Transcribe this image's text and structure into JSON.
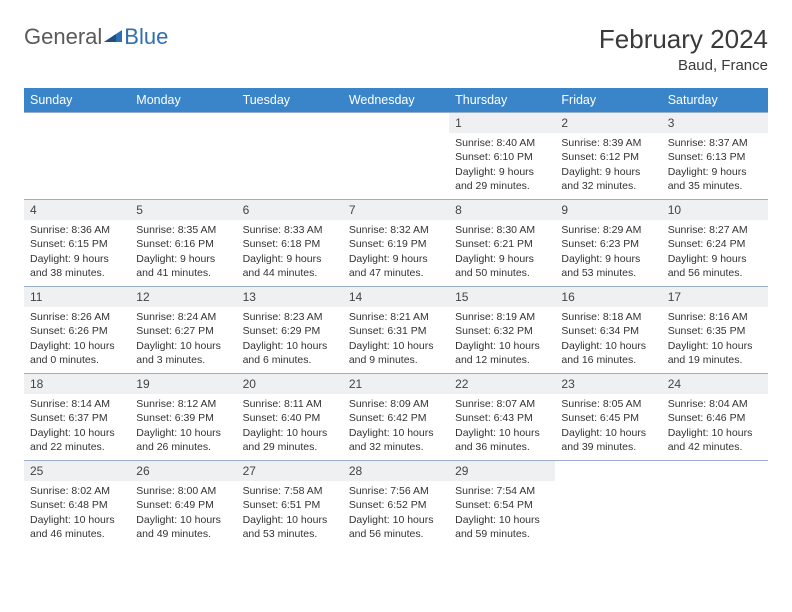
{
  "logo": {
    "word1": "General",
    "word2": "Blue"
  },
  "title": "February 2024",
  "location": "Baud, France",
  "colors": {
    "header_bg": "#3a85c9",
    "header_text": "#ffffff",
    "border": "#9aaecb",
    "daynum_bg": "#eef0f2",
    "logo_gray": "#5a5a5a",
    "logo_blue": "#2f6fb0"
  },
  "dayNames": [
    "Sunday",
    "Monday",
    "Tuesday",
    "Wednesday",
    "Thursday",
    "Friday",
    "Saturday"
  ],
  "weeks": [
    [
      {
        "n": "",
        "sr": "",
        "ss": "",
        "dl": ""
      },
      {
        "n": "",
        "sr": "",
        "ss": "",
        "dl": ""
      },
      {
        "n": "",
        "sr": "",
        "ss": "",
        "dl": ""
      },
      {
        "n": "",
        "sr": "",
        "ss": "",
        "dl": ""
      },
      {
        "n": "1",
        "sr": "Sunrise: 8:40 AM",
        "ss": "Sunset: 6:10 PM",
        "dl": "Daylight: 9 hours and 29 minutes."
      },
      {
        "n": "2",
        "sr": "Sunrise: 8:39 AM",
        "ss": "Sunset: 6:12 PM",
        "dl": "Daylight: 9 hours and 32 minutes."
      },
      {
        "n": "3",
        "sr": "Sunrise: 8:37 AM",
        "ss": "Sunset: 6:13 PM",
        "dl": "Daylight: 9 hours and 35 minutes."
      }
    ],
    [
      {
        "n": "4",
        "sr": "Sunrise: 8:36 AM",
        "ss": "Sunset: 6:15 PM",
        "dl": "Daylight: 9 hours and 38 minutes."
      },
      {
        "n": "5",
        "sr": "Sunrise: 8:35 AM",
        "ss": "Sunset: 6:16 PM",
        "dl": "Daylight: 9 hours and 41 minutes."
      },
      {
        "n": "6",
        "sr": "Sunrise: 8:33 AM",
        "ss": "Sunset: 6:18 PM",
        "dl": "Daylight: 9 hours and 44 minutes."
      },
      {
        "n": "7",
        "sr": "Sunrise: 8:32 AM",
        "ss": "Sunset: 6:19 PM",
        "dl": "Daylight: 9 hours and 47 minutes."
      },
      {
        "n": "8",
        "sr": "Sunrise: 8:30 AM",
        "ss": "Sunset: 6:21 PM",
        "dl": "Daylight: 9 hours and 50 minutes."
      },
      {
        "n": "9",
        "sr": "Sunrise: 8:29 AM",
        "ss": "Sunset: 6:23 PM",
        "dl": "Daylight: 9 hours and 53 minutes."
      },
      {
        "n": "10",
        "sr": "Sunrise: 8:27 AM",
        "ss": "Sunset: 6:24 PM",
        "dl": "Daylight: 9 hours and 56 minutes."
      }
    ],
    [
      {
        "n": "11",
        "sr": "Sunrise: 8:26 AM",
        "ss": "Sunset: 6:26 PM",
        "dl": "Daylight: 10 hours and 0 minutes."
      },
      {
        "n": "12",
        "sr": "Sunrise: 8:24 AM",
        "ss": "Sunset: 6:27 PM",
        "dl": "Daylight: 10 hours and 3 minutes."
      },
      {
        "n": "13",
        "sr": "Sunrise: 8:23 AM",
        "ss": "Sunset: 6:29 PM",
        "dl": "Daylight: 10 hours and 6 minutes."
      },
      {
        "n": "14",
        "sr": "Sunrise: 8:21 AM",
        "ss": "Sunset: 6:31 PM",
        "dl": "Daylight: 10 hours and 9 minutes."
      },
      {
        "n": "15",
        "sr": "Sunrise: 8:19 AM",
        "ss": "Sunset: 6:32 PM",
        "dl": "Daylight: 10 hours and 12 minutes."
      },
      {
        "n": "16",
        "sr": "Sunrise: 8:18 AM",
        "ss": "Sunset: 6:34 PM",
        "dl": "Daylight: 10 hours and 16 minutes."
      },
      {
        "n": "17",
        "sr": "Sunrise: 8:16 AM",
        "ss": "Sunset: 6:35 PM",
        "dl": "Daylight: 10 hours and 19 minutes."
      }
    ],
    [
      {
        "n": "18",
        "sr": "Sunrise: 8:14 AM",
        "ss": "Sunset: 6:37 PM",
        "dl": "Daylight: 10 hours and 22 minutes."
      },
      {
        "n": "19",
        "sr": "Sunrise: 8:12 AM",
        "ss": "Sunset: 6:39 PM",
        "dl": "Daylight: 10 hours and 26 minutes."
      },
      {
        "n": "20",
        "sr": "Sunrise: 8:11 AM",
        "ss": "Sunset: 6:40 PM",
        "dl": "Daylight: 10 hours and 29 minutes."
      },
      {
        "n": "21",
        "sr": "Sunrise: 8:09 AM",
        "ss": "Sunset: 6:42 PM",
        "dl": "Daylight: 10 hours and 32 minutes."
      },
      {
        "n": "22",
        "sr": "Sunrise: 8:07 AM",
        "ss": "Sunset: 6:43 PM",
        "dl": "Daylight: 10 hours and 36 minutes."
      },
      {
        "n": "23",
        "sr": "Sunrise: 8:05 AM",
        "ss": "Sunset: 6:45 PM",
        "dl": "Daylight: 10 hours and 39 minutes."
      },
      {
        "n": "24",
        "sr": "Sunrise: 8:04 AM",
        "ss": "Sunset: 6:46 PM",
        "dl": "Daylight: 10 hours and 42 minutes."
      }
    ],
    [
      {
        "n": "25",
        "sr": "Sunrise: 8:02 AM",
        "ss": "Sunset: 6:48 PM",
        "dl": "Daylight: 10 hours and 46 minutes."
      },
      {
        "n": "26",
        "sr": "Sunrise: 8:00 AM",
        "ss": "Sunset: 6:49 PM",
        "dl": "Daylight: 10 hours and 49 minutes."
      },
      {
        "n": "27",
        "sr": "Sunrise: 7:58 AM",
        "ss": "Sunset: 6:51 PM",
        "dl": "Daylight: 10 hours and 53 minutes."
      },
      {
        "n": "28",
        "sr": "Sunrise: 7:56 AM",
        "ss": "Sunset: 6:52 PM",
        "dl": "Daylight: 10 hours and 56 minutes."
      },
      {
        "n": "29",
        "sr": "Sunrise: 7:54 AM",
        "ss": "Sunset: 6:54 PM",
        "dl": "Daylight: 10 hours and 59 minutes."
      },
      {
        "n": "",
        "sr": "",
        "ss": "",
        "dl": ""
      },
      {
        "n": "",
        "sr": "",
        "ss": "",
        "dl": ""
      }
    ]
  ]
}
